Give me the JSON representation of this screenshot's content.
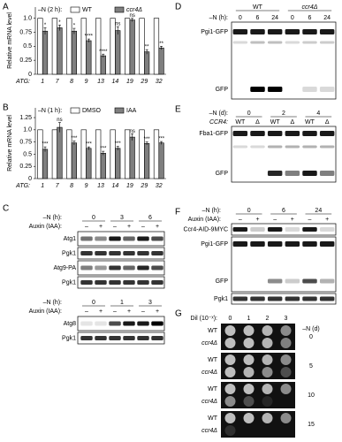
{
  "chart_data": [
    {
      "type": "bar",
      "panel": "A",
      "condition": "–N (2 h):",
      "ylabel": "Relative mRNA level",
      "xlabel": "ATG:",
      "categories": [
        "1",
        "7",
        "8",
        "9",
        "13",
        "14",
        "19",
        "29",
        "32"
      ],
      "series": [
        {
          "name": "WT",
          "color": "#ffffff",
          "values": [
            1,
            1,
            1,
            1,
            1,
            1,
            1,
            1,
            1
          ]
        },
        {
          "name": "ccr4Δ",
          "color": "#7f7f7f",
          "values": [
            0.77,
            0.83,
            0.77,
            0.6,
            0.33,
            0.78,
            0.97,
            0.4,
            0.47
          ],
          "errors": [
            0.06,
            0.05,
            0.05,
            0.03,
            0.03,
            0.07,
            0.03,
            0.04,
            0.03
          ]
        }
      ],
      "significance": [
        "*",
        "*",
        "*",
        "****",
        "****",
        "ns",
        "ns",
        "**",
        "**"
      ],
      "ylim": [
        0,
        1.2
      ],
      "yticks": [
        0,
        0.25,
        0.5,
        0.75,
        {
          "value": 1,
          "label": "1.0"
        }
      ]
    },
    {
      "type": "bar",
      "panel": "B",
      "condition": "–N (1 h):",
      "ylabel": "Relative mRNA level",
      "xlabel": "ATG:",
      "categories": [
        "1",
        "7",
        "8",
        "9",
        "13",
        "14",
        "19",
        "29",
        "32"
      ],
      "series": [
        {
          "name": "DMSO",
          "color": "#ffffff",
          "values": [
            1,
            1,
            1,
            1,
            1,
            1,
            1,
            1,
            1
          ]
        },
        {
          "name": "IAA",
          "color": "#7f7f7f",
          "values": [
            0.6,
            1.05,
            0.73,
            0.62,
            0.52,
            0.62,
            0.85,
            0.72,
            0.73
          ],
          "errors": [
            0.05,
            0.1,
            0.04,
            0.03,
            0.04,
            0.04,
            0.07,
            0.03,
            0.03
          ]
        }
      ],
      "significance": [
        "***",
        "ns",
        "***",
        "***",
        "***",
        "***",
        "ns",
        "***",
        "***"
      ],
      "ylim": [
        0,
        1.45
      ],
      "yticks": [
        0,
        0.25,
        0.5,
        0.75,
        {
          "value": 1,
          "label": "1.0"
        },
        1.25
      ]
    }
  ],
  "panels": {
    "C": {
      "label": "C",
      "blocks": [
        {
          "time_label": "–N (h):",
          "times": [
            "0",
            "3",
            "6"
          ],
          "auxin_label": "Auxin (IAA):",
          "auxin": [
            "–",
            "+",
            "–",
            "+",
            "–",
            "+"
          ],
          "blots": [
            "Atg1",
            "Pgk1",
            "Atg9-PA",
            "Pgk1"
          ]
        },
        {
          "time_label": "–N (h):",
          "times": [
            "0",
            "1",
            "3"
          ],
          "auxin_label": "Auxin (IAA):",
          "auxin": [
            "–",
            "+",
            "–",
            "+",
            "–",
            "+"
          ],
          "blots": [
            "Atg8",
            "Pgk1"
          ]
        }
      ]
    },
    "D": {
      "label": "D",
      "strains": [
        "WT",
        "ccr4Δ"
      ],
      "time_label": "–N (h):",
      "times": [
        "0",
        "6",
        "24",
        "0",
        "6",
        "24"
      ],
      "bands": [
        "Pgi1-GFP",
        "GFP"
      ]
    },
    "E": {
      "label": "E",
      "time_label": "–N (d):",
      "times": [
        "0",
        "2",
        "4"
      ],
      "genotype_label": "CCR4:",
      "genotypes": [
        "WT",
        "Δ",
        "WT",
        "Δ",
        "WT",
        "Δ"
      ],
      "bands": [
        "Fba1-GFP",
        "GFP"
      ]
    },
    "F": {
      "label": "F",
      "time_label": "–N (h):",
      "times": [
        "0",
        "6",
        "24"
      ],
      "auxin_label": "Auxin (IAA):",
      "auxin": [
        "–",
        "+",
        "–",
        "+",
        "–",
        "+"
      ],
      "bands": [
        "Ccr4-AID-9MYC",
        "Pgi1-GFP",
        "GFP",
        "Pgk1"
      ]
    },
    "G": {
      "label": "G",
      "dilution_label": "Dil (10⁻ˣ):",
      "dilutions": [
        "0",
        "1",
        "2",
        "3"
      ],
      "time_label": "–N (d)",
      "rows": [
        {
          "days": "0",
          "strains": [
            "WT",
            "ccr4Δ"
          ]
        },
        {
          "days": "5",
          "strains": [
            "WT",
            "ccr4Δ"
          ]
        },
        {
          "days": "10",
          "strains": [
            "WT",
            "ccr4Δ"
          ]
        },
        {
          "days": "15",
          "strains": [
            "WT",
            "ccr4Δ"
          ]
        }
      ]
    }
  }
}
